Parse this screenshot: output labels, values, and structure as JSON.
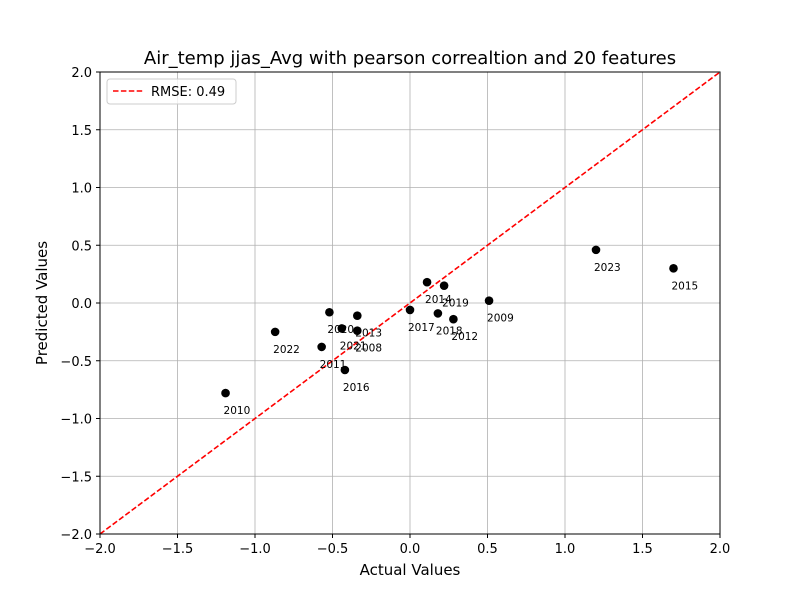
{
  "chart_data": {
    "type": "scatter",
    "title": "Air_temp jjas_Avg with pearson correaltion and 20 features",
    "xlabel": "Actual Values",
    "ylabel": "Predicted Values",
    "xlim": [
      -2.0,
      2.0
    ],
    "ylim": [
      -2.0,
      2.0
    ],
    "xticks": [
      -2.0,
      -1.5,
      -1.0,
      -0.5,
      0.0,
      0.5,
      1.0,
      1.5,
      2.0
    ],
    "yticks": [
      -2.0,
      -1.5,
      -1.0,
      -0.5,
      0.0,
      0.5,
      1.0,
      1.5,
      2.0
    ],
    "grid": true,
    "legend_position": "top-left",
    "legend": [
      {
        "label": "RMSE: 0.49",
        "style": "dashed-line",
        "color": "#e41a1c"
      }
    ],
    "reference_line": {
      "label": "RMSE: 0.49",
      "from": [
        -2.0,
        -2.0
      ],
      "to": [
        2.0,
        2.0
      ],
      "color": "#ff0000"
    },
    "point_color": "#000000",
    "points": [
      {
        "label": "2010",
        "x": -1.19,
        "y": -0.78
      },
      {
        "label": "2022",
        "x": -0.87,
        "y": -0.25
      },
      {
        "label": "2011",
        "x": -0.57,
        "y": -0.38
      },
      {
        "label": "2020",
        "x": -0.52,
        "y": -0.08
      },
      {
        "label": "2021",
        "x": -0.44,
        "y": -0.22
      },
      {
        "label": "2016",
        "x": -0.42,
        "y": -0.58
      },
      {
        "label": "2013",
        "x": -0.34,
        "y": -0.11
      },
      {
        "label": "2008",
        "x": -0.34,
        "y": -0.24
      },
      {
        "label": "2017",
        "x": 0.0,
        "y": -0.06
      },
      {
        "label": "2014",
        "x": 0.11,
        "y": 0.18
      },
      {
        "label": "2018",
        "x": 0.18,
        "y": -0.09
      },
      {
        "label": "2019",
        "x": 0.22,
        "y": 0.15
      },
      {
        "label": "2012",
        "x": 0.28,
        "y": -0.14
      },
      {
        "label": "2009",
        "x": 0.51,
        "y": 0.02
      },
      {
        "label": "2023",
        "x": 1.2,
        "y": 0.46
      },
      {
        "label": "2015",
        "x": 1.7,
        "y": 0.3
      }
    ]
  }
}
